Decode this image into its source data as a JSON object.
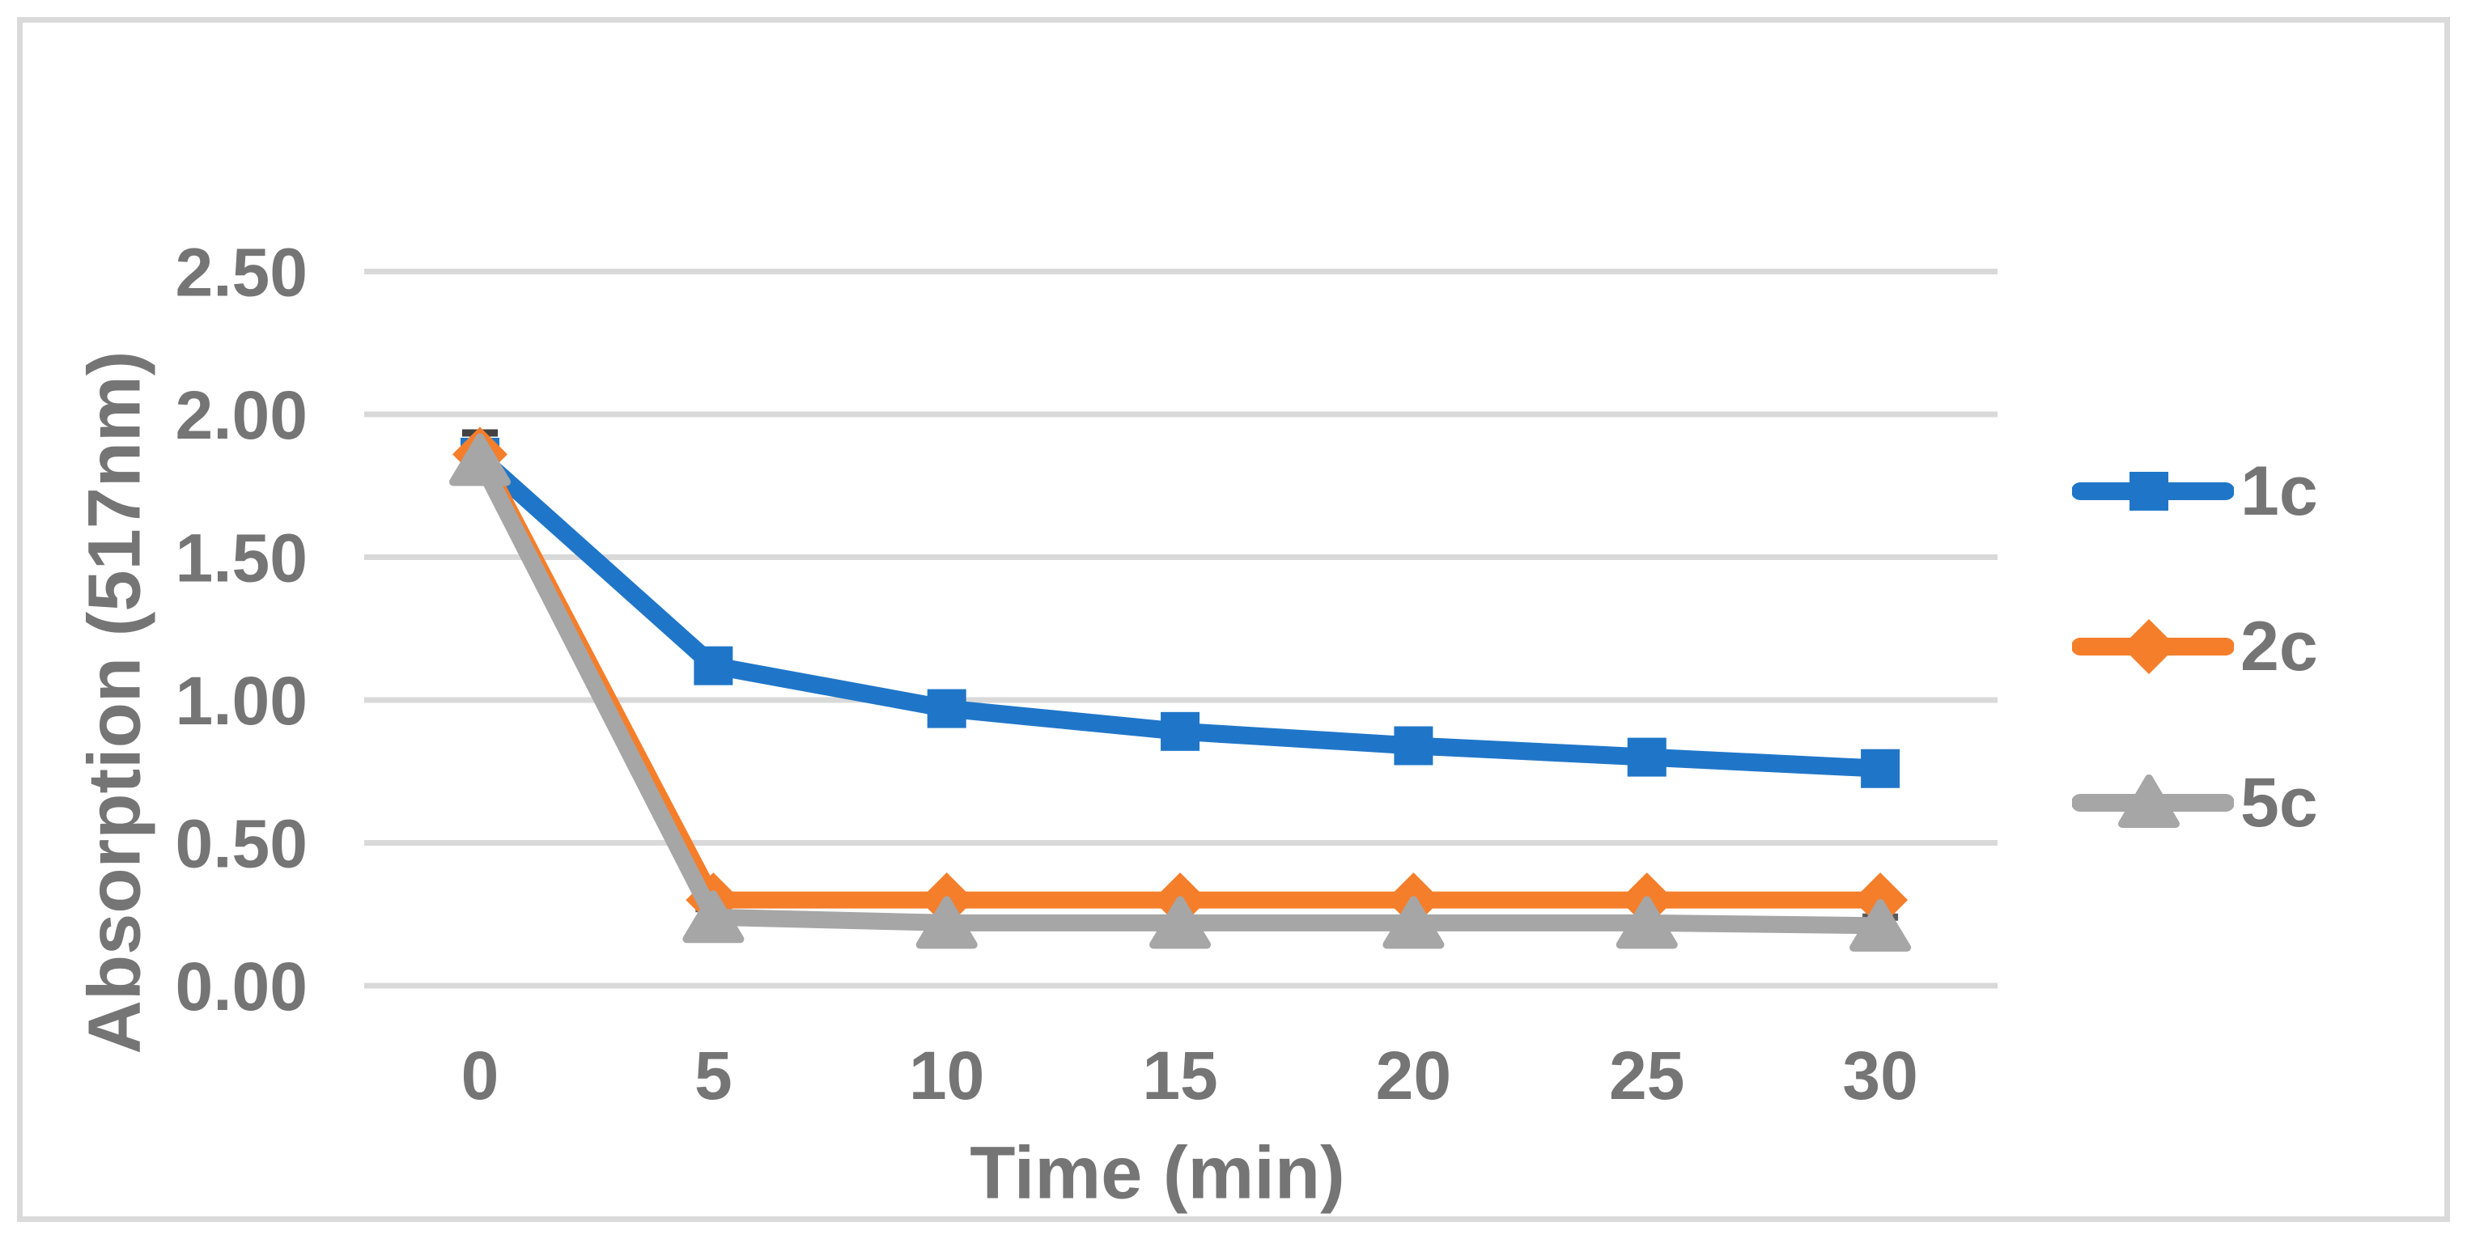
{
  "chart_data": {
    "type": "line",
    "title": "",
    "xlabel": "Time (min)",
    "ylabel": "Absorption (517nm)",
    "x": [
      0,
      5,
      10,
      15,
      20,
      25,
      30
    ],
    "x_tick_labels": [
      "0",
      "5",
      "10",
      "15",
      "20",
      "25",
      "30"
    ],
    "y_ticks": [
      0.0,
      0.5,
      1.0,
      1.5,
      2.0,
      2.5
    ],
    "y_tick_labels": [
      "0.00",
      "0.50",
      "1.00",
      "1.50",
      "2.00",
      "2.50"
    ],
    "ylim": [
      0,
      2.75
    ],
    "grid": "horizontal-only",
    "legend_position": "right-middle",
    "series": [
      {
        "name": "1c",
        "marker": "square",
        "color": "#1F76C9",
        "values": [
          1.85,
          1.12,
          0.97,
          0.89,
          0.84,
          0.8,
          0.76
        ]
      },
      {
        "name": "2c",
        "marker": "diamond",
        "color": "#F57E2B",
        "values": [
          1.86,
          0.3,
          0.3,
          0.3,
          0.3,
          0.3,
          0.3
        ]
      },
      {
        "name": "5c",
        "marker": "triangle",
        "color": "#A6A6A6",
        "values": [
          1.84,
          0.24,
          0.22,
          0.22,
          0.22,
          0.22,
          0.21
        ]
      }
    ],
    "error_bars": [
      {
        "at_series": "all",
        "x": 0,
        "y": 1.85,
        "plus": 0.085,
        "minus": 0.085,
        "color": "#424242"
      },
      {
        "at_series": "5c",
        "x": 5,
        "y": 0.24,
        "plus": 0.03,
        "minus": 0.03,
        "color": "#595959"
      },
      {
        "at_series": "5c",
        "x": 30,
        "y": 0.21,
        "plus": 0.03,
        "minus": 0.03,
        "color": "#595959"
      }
    ]
  },
  "colors": {
    "background": "#FFFFFF",
    "gridline": "#D9D9D9",
    "axis_text": "#757575",
    "frame_border": "#DADADA"
  }
}
